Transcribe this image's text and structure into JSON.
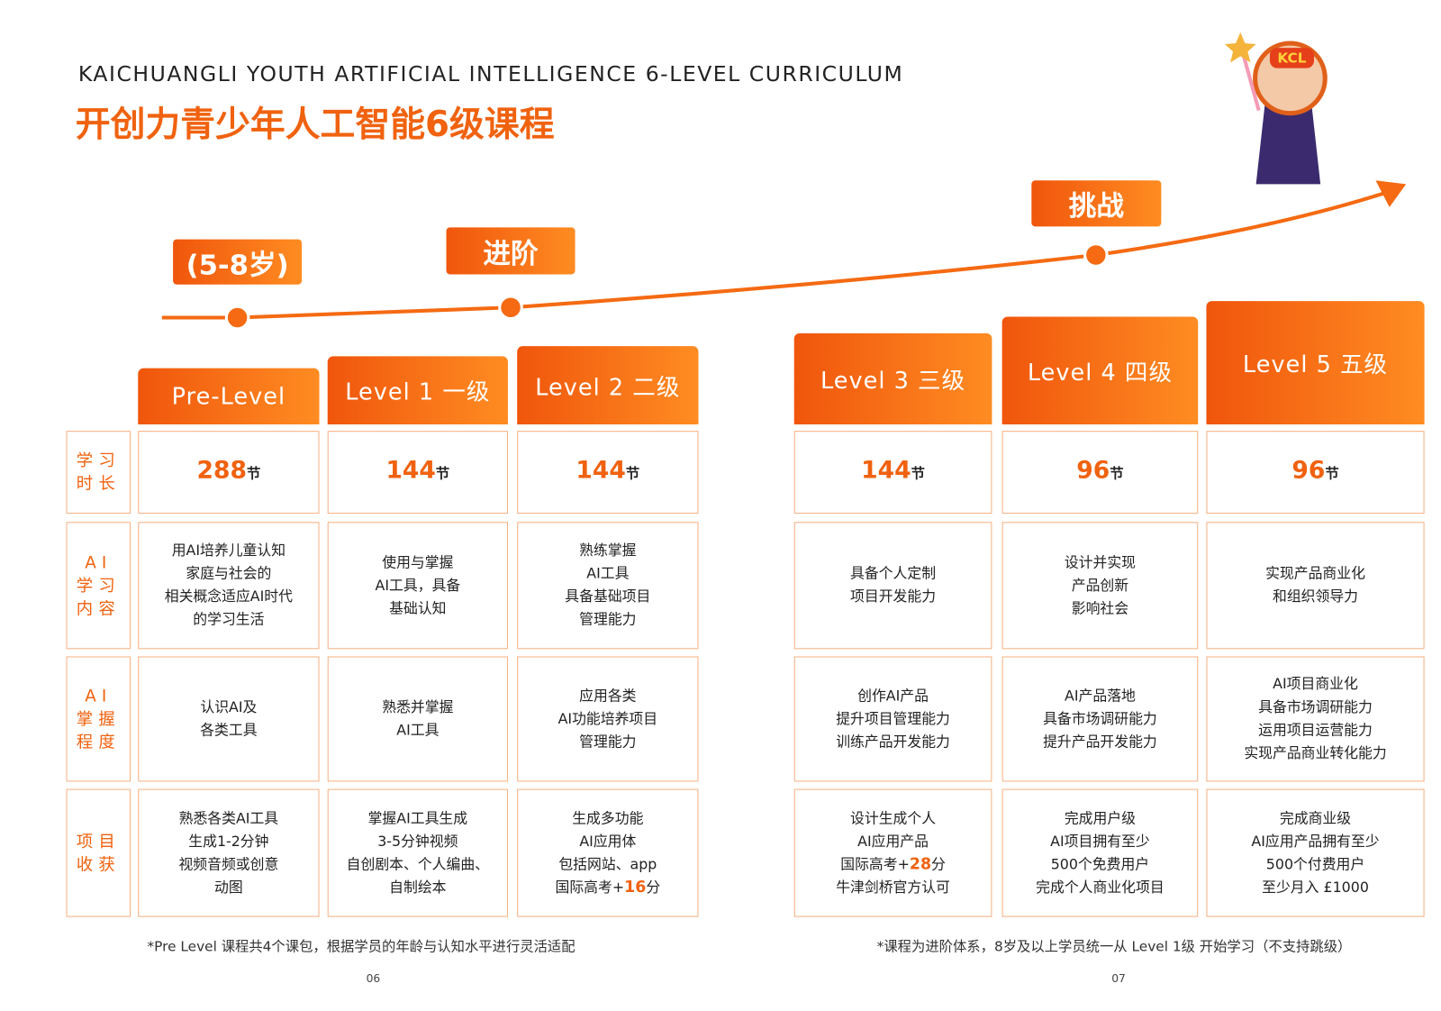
{
  "header": {
    "title_en": "KAICHUANGLI YOUTH ARTIFICIAL INTELLIGENCE 6-LEVEL CURRICULUM",
    "title_cn": "开创力青少年人工智能6级课程"
  },
  "mascot_label": "KCL",
  "stages": [
    "(5-8岁)",
    "进阶",
    "挑战"
  ],
  "row_labels": [
    [
      "学习",
      "时长"
    ],
    [
      "AI",
      "学习",
      "内容"
    ],
    [
      "AI",
      "掌握",
      "程度"
    ],
    [
      "项目",
      "收获"
    ]
  ],
  "levels": [
    {
      "name": "Pre-Level",
      "hours": "288",
      "unit": "节",
      "content": [
        "用AI培养儿童认知",
        "家庭与社会的",
        "相关概念适应AI时代",
        "的学习生活"
      ],
      "mastery": [
        "认识AI及",
        "各类工具"
      ],
      "outcome": [
        "熟悉各类AI工具",
        "生成1-2分钟",
        "视频音频或创意",
        "动图"
      ]
    },
    {
      "name": "Level 1 一级",
      "hours": "144",
      "unit": "节",
      "content": [
        "使用与掌握",
        "AI工具，具备",
        "基础认知"
      ],
      "mastery": [
        "熟悉并掌握",
        "AI工具"
      ],
      "outcome": [
        "掌握AI工具生成",
        "3-5分钟视频",
        "自创剧本、个人编曲、",
        "自制绘本"
      ]
    },
    {
      "name": "Level 2 二级",
      "hours": "144",
      "unit": "节",
      "content": [
        "熟练掌握",
        "AI工具",
        "具备基础项目",
        "管理能力"
      ],
      "mastery": [
        "应用各类",
        "AI功能培养项目",
        "管理能力"
      ],
      "outcome": [
        "生成多功能",
        "AI应用体",
        "包括网站、app",
        [
          "国际高考+",
          "16",
          "分"
        ]
      ]
    },
    {
      "name": "Level 3 三级",
      "hours": "144",
      "unit": "节",
      "content": [
        "具备个人定制",
        "项目开发能力"
      ],
      "mastery": [
        "创作AI产品",
        "提升项目管理能力",
        "训练产品开发能力"
      ],
      "outcome": [
        "设计生成个人",
        "AI应用产品",
        [
          "国际高考+",
          "28",
          "分"
        ],
        "牛津剑桥官方认可"
      ]
    },
    {
      "name": "Level 4 四级",
      "hours": "96",
      "unit": "节",
      "content": [
        "设计并实现",
        "产品创新",
        "影响社会"
      ],
      "mastery": [
        "AI产品落地",
        "具备市场调研能力",
        "提升产品开发能力"
      ],
      "outcome": [
        "完成用户级",
        "AI项目拥有至少",
        "500个免费用户",
        "完成个人商业化项目"
      ]
    },
    {
      "name": "Level 5 五级",
      "hours": "96",
      "unit": "节",
      "content": [
        "实现产品商业化",
        "和组织领导力"
      ],
      "mastery": [
        "AI项目商业化",
        "具备市场调研能力",
        "运用项目运营能力",
        "实现产品商业转化能力"
      ],
      "outcome": [
        "完成商业级",
        "AI应用产品拥有至少",
        "500个付费用户",
        "至少月入 £1000"
      ]
    }
  ],
  "footnotes": [
    "*Pre Level 课程共4个课包，根据学员的年龄与认知水平进行灵活适配",
    "*课程为进阶体系，8岁及以上学员统一从 Level 1级 开始学习（不支持跳级）"
  ],
  "page_numbers": [
    "06",
    "07"
  ]
}
